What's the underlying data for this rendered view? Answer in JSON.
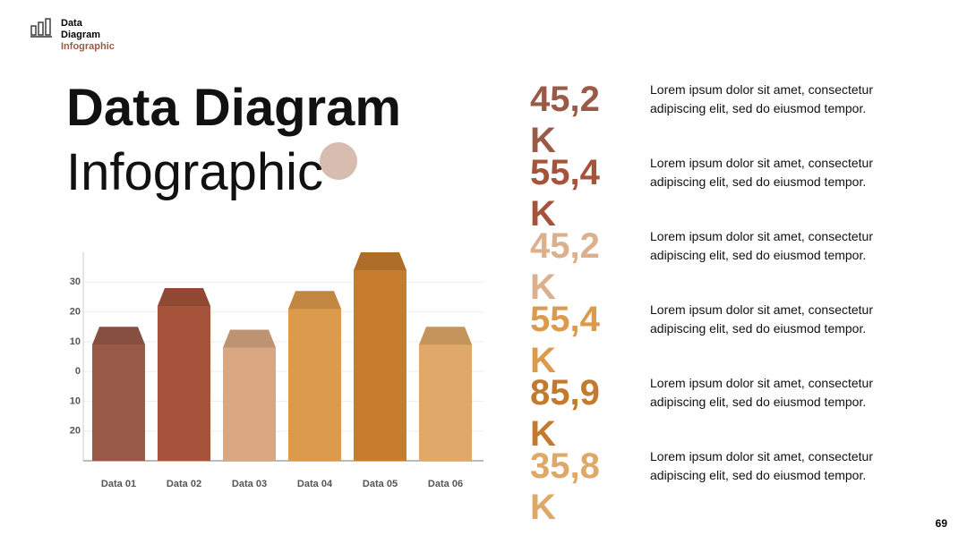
{
  "header": {
    "line1": "Data",
    "line2": "Diagram",
    "line3": "Infographic"
  },
  "title": {
    "line1": "Data Diagram",
    "line2": "Infographic"
  },
  "chart_data": {
    "type": "bar",
    "categories": [
      "Data 01",
      "Data 02",
      "Data 03",
      "Data 04",
      "Data 05",
      "Data 06"
    ],
    "values": [
      15,
      28,
      14,
      27,
      40,
      15
    ],
    "colors": [
      "#9a5a48",
      "#a5533a",
      "#d9a883",
      "#dc9a4c",
      "#c77d2e",
      "#e0a96a"
    ],
    "ylim": [
      -30,
      40
    ],
    "yticks": [
      {
        "value": -20,
        "label": "20"
      },
      {
        "value": -10,
        "label": "10"
      },
      0,
      10,
      20,
      30
    ],
    "grid": true
  },
  "stats": [
    {
      "value": "45,2 K",
      "color": "#9a5a48",
      "text": "Lorem ipsum dolor sit amet, consectetur adipiscing elit, sed do eiusmod tempor."
    },
    {
      "value": "55,4 K",
      "color": "#a5533a",
      "text": "Lorem ipsum dolor sit amet, consectetur adipiscing elit, sed do eiusmod tempor."
    },
    {
      "value": "45,2 K",
      "color": "#dcb08c",
      "text": "Lorem ipsum dolor sit amet, consectetur adipiscing elit, sed do eiusmod tempor."
    },
    {
      "value": "55,4 K",
      "color": "#dc9a4c",
      "text": "Lorem ipsum dolor sit amet, consectetur adipiscing elit, sed do eiusmod tempor."
    },
    {
      "value": "85,9 K",
      "color": "#c47a2c",
      "text": "Lorem ipsum dolor sit amet, consectetur adipiscing elit, sed do eiusmod tempor."
    },
    {
      "value": "35,8 K",
      "color": "#dea867",
      "text": "Lorem ipsum dolor sit amet, consectetur adipiscing elit, sed do eiusmod tempor."
    }
  ],
  "page_number": "69"
}
